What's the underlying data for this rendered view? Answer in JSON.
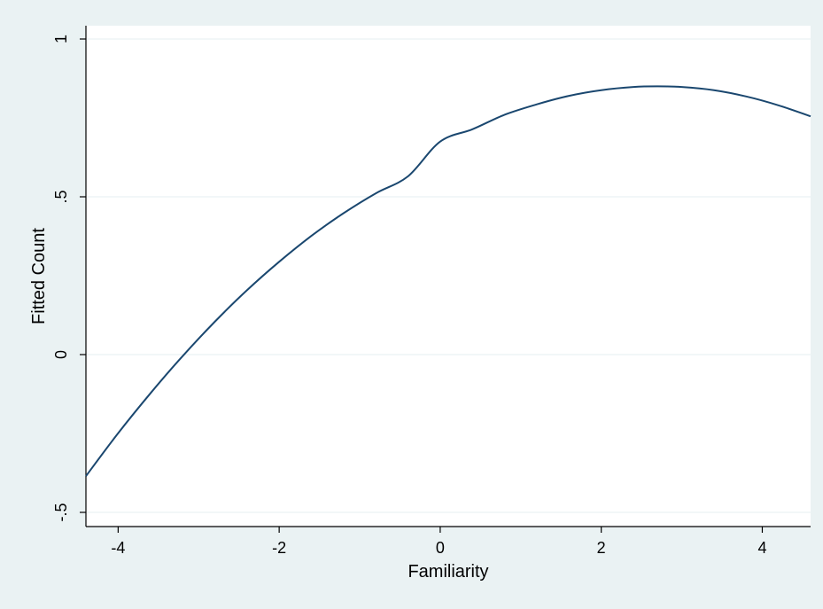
{
  "chart_data": {
    "type": "line",
    "title": "",
    "xlabel": "Familiarity",
    "ylabel": "Fitted Count",
    "xlim": [
      -4.4,
      4.6
    ],
    "ylim": [
      -0.5,
      1
    ],
    "x_ticks": [
      -4,
      -2,
      0,
      2,
      4
    ],
    "x_tick_labels": [
      "-4",
      "-2",
      "0",
      "2",
      "4"
    ],
    "y_ticks": [
      -0.5,
      0,
      0.5,
      1
    ],
    "y_tick_labels": [
      "-.5",
      "0",
      ".5",
      "1"
    ],
    "grid": true,
    "series": [
      {
        "x": [
          -4.4,
          -4.0,
          -3.6,
          -3.2,
          -2.8,
          -2.4,
          -2.0,
          -1.6,
          -1.2,
          -0.8,
          -0.4,
          0.0,
          0.4,
          0.8,
          1.2,
          1.6,
          2.0,
          2.4,
          2.7,
          3.0,
          3.4,
          3.8,
          4.2,
          4.6
        ],
        "y": [
          -0.385,
          -0.249,
          -0.123,
          -0.005,
          0.104,
          0.204,
          0.294,
          0.376,
          0.448,
          0.511,
          0.565,
          0.675,
          0.714,
          0.76,
          0.793,
          0.82,
          0.838,
          0.848,
          0.85,
          0.848,
          0.838,
          0.818,
          0.79,
          0.755
        ],
        "color": "#1a476f"
      }
    ],
    "colors": {
      "background": "#eaf2f3",
      "plot_background": "#ffffff",
      "grid": "#eaf2f3",
      "line": "#1a476f"
    }
  }
}
